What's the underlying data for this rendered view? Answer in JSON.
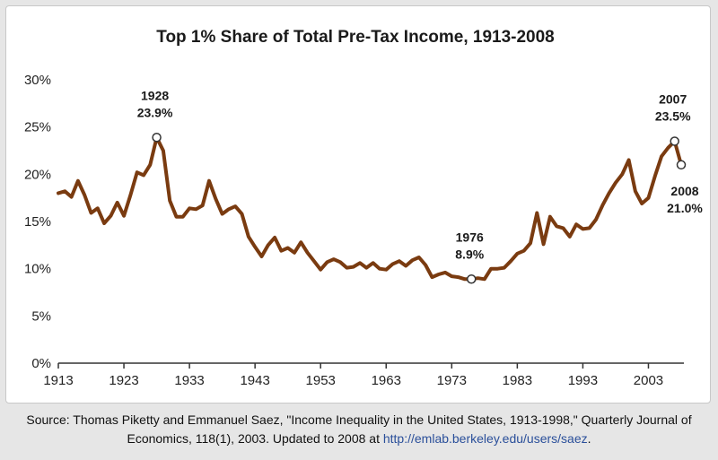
{
  "chart_data": {
    "type": "line",
    "title": "Top 1% Share of Total Pre-Tax Income, 1913-2008",
    "xlabel": "",
    "ylabel": "",
    "xlim": [
      1913,
      2008
    ],
    "ylim": [
      0,
      30
    ],
    "grid": false,
    "line_color": "#7a3b10",
    "x_ticks": [
      1913,
      1923,
      1933,
      1943,
      1953,
      1963,
      1973,
      1983,
      1993,
      2003
    ],
    "x_tick_labels": [
      "1913",
      "1923",
      "1933",
      "1943",
      "1953",
      "1963",
      "1973",
      "1983",
      "1993",
      "2003"
    ],
    "y_ticks": [
      0,
      5,
      10,
      15,
      20,
      25,
      30
    ],
    "y_tick_labels": [
      "0%",
      "5%",
      "10%",
      "15%",
      "20%",
      "25%",
      "30%"
    ],
    "series": [
      {
        "x": [
          1913,
          1914,
          1915,
          1916,
          1917,
          1918,
          1919,
          1920,
          1921,
          1922,
          1923,
          1924,
          1925,
          1926,
          1927,
          1928,
          1929,
          1930,
          1931,
          1932,
          1933,
          1934,
          1935,
          1936,
          1937,
          1938,
          1939,
          1940,
          1941,
          1942,
          1943,
          1944,
          1945,
          1946,
          1947,
          1948,
          1949,
          1950,
          1951,
          1952,
          1953,
          1954,
          1955,
          1956,
          1957,
          1958,
          1959,
          1960,
          1961,
          1962,
          1963,
          1964,
          1965,
          1966,
          1967,
          1968,
          1969,
          1970,
          1971,
          1972,
          1973,
          1974,
          1975,
          1976,
          1977,
          1978,
          1979,
          1980,
          1981,
          1982,
          1983,
          1984,
          1985,
          1986,
          1987,
          1988,
          1989,
          1990,
          1991,
          1992,
          1993,
          1994,
          1995,
          1996,
          1997,
          1998,
          1999,
          2000,
          2001,
          2002,
          2003,
          2004,
          2005,
          2006,
          2007,
          2008
        ],
        "y": [
          18.0,
          18.2,
          17.6,
          19.3,
          17.8,
          15.9,
          16.4,
          14.8,
          15.6,
          17.0,
          15.6,
          17.8,
          20.2,
          19.9,
          21.0,
          23.9,
          22.5,
          17.2,
          15.5,
          15.5,
          16.4,
          16.3,
          16.7,
          19.3,
          17.4,
          15.8,
          16.3,
          16.6,
          15.8,
          13.4,
          12.3,
          11.3,
          12.5,
          13.3,
          11.9,
          12.2,
          11.7,
          12.8,
          11.7,
          10.8,
          9.9,
          10.7,
          11.0,
          10.7,
          10.1,
          10.2,
          10.6,
          10.1,
          10.6,
          10.0,
          9.9,
          10.5,
          10.8,
          10.3,
          10.9,
          11.2,
          10.4,
          9.1,
          9.4,
          9.6,
          9.2,
          9.1,
          8.9,
          8.9,
          9.0,
          8.9,
          10.0,
          10.0,
          10.1,
          10.8,
          11.6,
          11.9,
          12.7,
          15.9,
          12.6,
          15.5,
          14.5,
          14.3,
          13.4,
          14.7,
          14.2,
          14.3,
          15.2,
          16.7,
          18.0,
          19.1,
          20.0,
          21.5,
          18.2,
          16.9,
          17.5,
          19.8,
          21.9,
          22.8,
          23.5,
          21.0
        ]
      }
    ],
    "annotations": [
      {
        "x": 1928,
        "y": 23.9,
        "year": "1928",
        "value": "23.9%",
        "placement": "above"
      },
      {
        "x": 1976,
        "y": 8.9,
        "year": "1976",
        "value": "8.9%",
        "placement": "above"
      },
      {
        "x": 2007,
        "y": 23.5,
        "year": "2007",
        "value": "23.5%",
        "placement": "above"
      },
      {
        "x": 2008,
        "y": 21.0,
        "year": "2008",
        "value": "21.0%",
        "placement": "below-right"
      }
    ]
  },
  "source_note": {
    "text": "Source: Thomas Piketty and Emmanuel Saez, \"Income Inequality in the United States, 1913-1998,\" Quarterly Journal of Economics, 118(1), 2003. Updated to 2008 at ",
    "link_text": "http://emlab.berkeley.edu/users/saez",
    "end": "."
  }
}
